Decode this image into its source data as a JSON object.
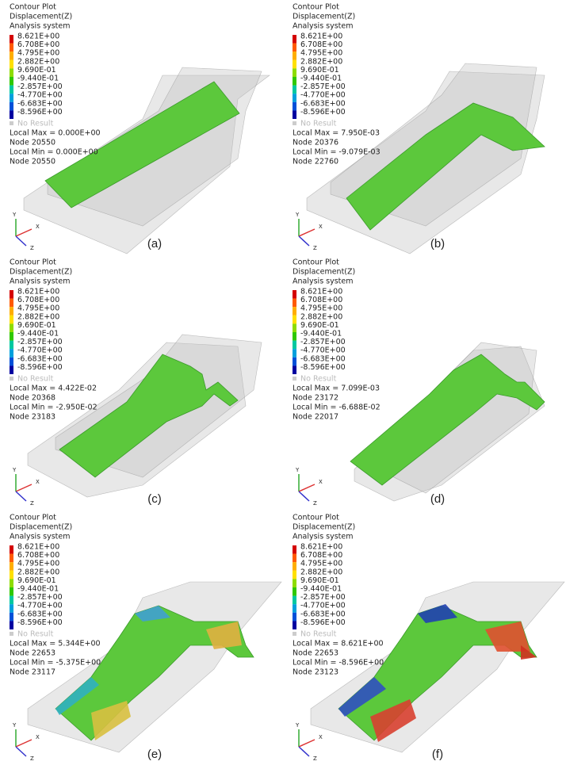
{
  "panels": [
    {
      "header": [
        "Contour Plot",
        "Displacement(Z)",
        "Analysis system"
      ],
      "legend": [
        "8.621E+00",
        "6.708E+00",
        "4.795E+00",
        "2.882E+00",
        "9.690E-01",
        "-9.440E-01",
        "-2.857E+00",
        "-4.770E+00",
        "-6.683E+00",
        "-8.596E+00"
      ],
      "no_result": "No Result",
      "stats": [
        "Local Max = 0.000E+00",
        "Node 20550",
        "Local Min = 0.000E+00",
        "Node 20550"
      ],
      "axes": [
        "Y",
        "X",
        "Z"
      ],
      "caption": "(a)"
    },
    {
      "header": [
        "Contour Plot",
        "Displacement(Z)",
        "Analysis system"
      ],
      "legend": [
        "8.621E+00",
        "6.708E+00",
        "4.795E+00",
        "2.882E+00",
        "9.690E-01",
        "-9.440E-01",
        "-2.857E+00",
        "-4.770E+00",
        "-6.683E+00",
        "-8.596E+00"
      ],
      "no_result": "No Result",
      "stats": [
        "Local Max = 7.950E-03",
        "Node 20376",
        "Local Min = -9.079E-03",
        "Node 22760"
      ],
      "axes": [
        "Y",
        "X",
        "Z"
      ],
      "caption": "(b)"
    },
    {
      "header": [
        "Contour Plot",
        "Displacement(Z)",
        "Analysis system"
      ],
      "legend": [
        "8.621E+00",
        "6.708E+00",
        "4.795E+00",
        "2.882E+00",
        "9.690E-01",
        "-9.440E-01",
        "-2.857E+00",
        "-4.770E+00",
        "-6.683E+00",
        "-8.596E+00"
      ],
      "no_result": "No Result",
      "stats": [
        "Local Max = 4.422E-02",
        "Node 20368",
        "Local Min = -2.950E-02",
        "Node 23183"
      ],
      "axes": [
        "Y",
        "X",
        "Z"
      ],
      "caption": "(c)"
    },
    {
      "header": [
        "Contour Plot",
        "Displacement(Z)",
        "Analysis system"
      ],
      "legend": [
        "8.621E+00",
        "6.708E+00",
        "4.795E+00",
        "2.882E+00",
        "9.690E-01",
        "-9.440E-01",
        "-2.857E+00",
        "-4.770E+00",
        "-6.683E+00",
        "-8.596E+00"
      ],
      "no_result": "No Result",
      "stats": [
        "Local Max = 7.099E-03",
        "Node 23172",
        "Local Min = -6.688E-02",
        "Node 22017"
      ],
      "axes": [
        "Y",
        "X",
        "Z"
      ],
      "caption": "(d)"
    },
    {
      "header": [
        "Contour Plot",
        "Displacement(Z)",
        "Analysis system"
      ],
      "legend": [
        "8.621E+00",
        "6.708E+00",
        "4.795E+00",
        "2.882E+00",
        "9.690E-01",
        "-9.440E-01",
        "-2.857E+00",
        "-4.770E+00",
        "-6.683E+00",
        "-8.596E+00"
      ],
      "no_result": "No Result",
      "stats": [
        "Local Max = 5.344E+00",
        "Node 22653",
        "Local Min = -5.375E+00",
        "Node 23117"
      ],
      "axes": [
        "Y",
        "X",
        "Z"
      ],
      "caption": "(e)"
    },
    {
      "header": [
        "Contour Plot",
        "Displacement(Z)",
        "Analysis system"
      ],
      "legend": [
        "8.621E+00",
        "6.708E+00",
        "4.795E+00",
        "2.882E+00",
        "9.690E-01",
        "-9.440E-01",
        "-2.857E+00",
        "-4.770E+00",
        "-6.683E+00",
        "-8.596E+00"
      ],
      "no_result": "No Result",
      "stats": [
        "Local Max = 8.621E+00",
        "Node 22653",
        "Local Min = -8.596E+00",
        "Node 23123"
      ],
      "axes": [
        "Y",
        "X",
        "Z"
      ],
      "caption": "(f)"
    }
  ]
}
